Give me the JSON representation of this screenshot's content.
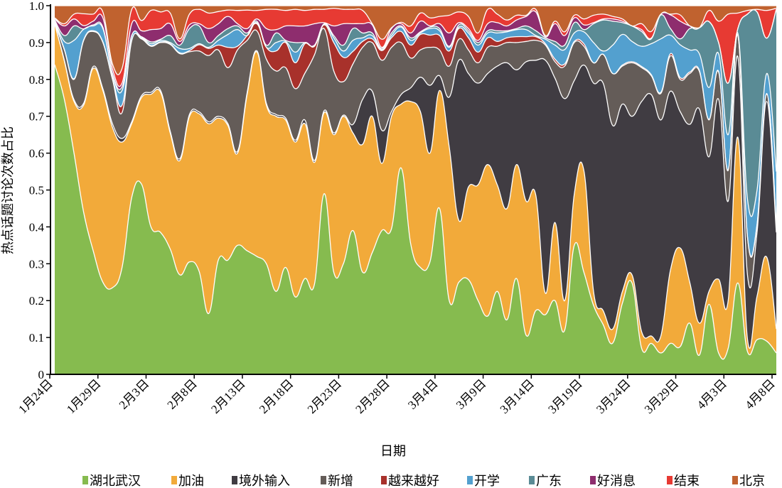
{
  "chart_data": {
    "type": "area",
    "stacked": true,
    "normalized": true,
    "title": "",
    "xlabel": "日期",
    "ylabel": "热点话题讨论次数占比",
    "ylim": [
      0,
      1.0
    ],
    "y_ticks": [
      "0",
      "0.1",
      "0.2",
      "0.3",
      "0.4",
      "0.5",
      "0.6",
      "0.7",
      "0.8",
      "0.9",
      "1.0"
    ],
    "x_ticks": [
      "1月24日",
      "1月29日",
      "2月3日",
      "2月8日",
      "2月13日",
      "2月18日",
      "2月23日",
      "2月28日",
      "3月4日",
      "3月9日",
      "3月14日",
      "3月19日",
      "3月24日",
      "3月29日",
      "4月3日",
      "4月8日"
    ],
    "x_range": [
      "1月24日",
      "4月8日"
    ],
    "grid": false,
    "legend_position": "bottom",
    "series": [
      {
        "name": "湖北武汉",
        "color": "#86bb4f",
        "values": [
          0.84,
          0.746,
          0.6,
          0.44,
          0.335,
          0.25,
          0.235,
          0.29,
          0.48,
          0.517,
          0.4,
          0.385,
          0.34,
          0.27,
          0.305,
          0.28,
          0.165,
          0.31,
          0.31,
          0.35,
          0.335,
          0.32,
          0.3,
          0.225,
          0.29,
          0.21,
          0.26,
          0.245,
          0.49,
          0.277,
          0.3,
          0.39,
          0.277,
          0.33,
          0.39,
          0.395,
          0.56,
          0.354,
          0.29,
          0.305,
          0.45,
          0.2,
          0.25,
          0.257,
          0.2,
          0.158,
          0.225,
          0.148,
          0.26,
          0.106,
          0.173,
          0.162,
          0.2,
          0.12,
          0.35,
          0.277,
          0.187,
          0.135,
          0.085,
          0.193,
          0.248,
          0.071,
          0.084,
          0.058,
          0.084,
          0.075,
          0.139,
          0.052,
          0.19,
          0.058,
          0.071,
          0.248,
          0.062,
          0.094,
          0.09,
          0.058
        ]
      },
      {
        "name": "加油",
        "color": "#f2aa3a",
        "values": [
          0.11,
          0.104,
          0.14,
          0.29,
          0.495,
          0.52,
          0.435,
          0.34,
          0.2,
          0.233,
          0.36,
          0.38,
          0.315,
          0.31,
          0.395,
          0.427,
          0.515,
          0.385,
          0.365,
          0.25,
          0.425,
          0.555,
          0.43,
          0.475,
          0.4,
          0.42,
          0.42,
          0.33,
          0.22,
          0.373,
          0.4,
          0.265,
          0.347,
          0.37,
          0.182,
          0.305,
          0.173,
          0.386,
          0.423,
          0.295,
          0.32,
          0.417,
          0.168,
          0.251,
          0.314,
          0.411,
          0.289,
          0.302,
          0.309,
          0.364,
          0.313,
          0.058,
          0.212,
          0.08,
          0.139,
          0.276,
          0.038,
          0.038,
          0.038,
          0.032,
          0.022,
          0.045,
          0.02,
          0.046,
          0.199,
          0.268,
          0.111,
          0.087,
          0.035,
          0.2,
          0.129,
          0.395,
          0.034,
          0.118,
          0.228,
          0.065
        ]
      },
      {
        "name": "境外输入",
        "color": "#403c42",
        "values": [
          0.001,
          0.002,
          0.005,
          0.005,
          0.005,
          0.005,
          0.01,
          0.01,
          0.005,
          0.005,
          0.005,
          0.005,
          0.005,
          0.005,
          0.005,
          0.005,
          0.005,
          0.005,
          0.005,
          0.005,
          0.005,
          0.003,
          0.005,
          0.005,
          0.005,
          0.005,
          0.01,
          0.005,
          0.005,
          0.005,
          0.003,
          0.023,
          0.122,
          0.068,
          0.09,
          0.013,
          0.026,
          0.037,
          0.093,
          0.184,
          0.04,
          0.135,
          0.434,
          0.308,
          0.276,
          0.247,
          0.322,
          0.395,
          0.257,
          0.378,
          0.366,
          0.632,
          0.391,
          0.548,
          0.308,
          0.286,
          0.565,
          0.617,
          0.552,
          0.508,
          0.43,
          0.624,
          0.655,
          0.586,
          0.485,
          0.37,
          0.428,
          0.581,
          0.365,
          0.488,
          0.27,
          0.218,
          0.174,
          0.173,
          0.422,
          0.262
        ]
      },
      {
        "name": "新增",
        "color": "#645c58",
        "values": [
          0.002,
          0.028,
          0.055,
          0.17,
          0.095,
          0.125,
          0.12,
          0.07,
          0.22,
          0.155,
          0.125,
          0.13,
          0.235,
          0.285,
          0.17,
          0.165,
          0.18,
          0.18,
          0.152,
          0.275,
          0.141,
          0.054,
          0.12,
          0.118,
          0.137,
          0.14,
          0.127,
          0.287,
          0.223,
          0.168,
          0.091,
          0.164,
          0.141,
          0.132,
          0.19,
          0.174,
          0.141,
          0.081,
          0.074,
          0.103,
          0.07,
          0.084,
          0.057,
          0.064,
          0.055,
          0.071,
          0.054,
          0.055,
          0.074,
          0.055,
          0.054,
          0.041,
          0.045,
          0.088,
          0.103,
          0.051,
          0.055,
          0.078,
          0.141,
          0.103,
          0.145,
          0.092,
          0.051,
          0.072,
          0.096,
          0.087,
          0.138,
          0.102,
          0.1,
          0.074,
          0.083,
          0.058,
          0.103,
          0.02,
          0.02,
          0.02
        ]
      },
      {
        "name": "越来越好",
        "color": "#a8312b",
        "values": [
          0.001,
          0.002,
          0.002,
          0.002,
          0.002,
          0.002,
          0.005,
          0.02,
          0.002,
          0.002,
          0.002,
          0.002,
          0.002,
          0.002,
          0.003,
          0.017,
          0.019,
          0.013,
          0.055,
          0.01,
          0.013,
          0.019,
          0.032,
          0.054,
          0.068,
          0.07,
          0.08,
          0.023,
          0.01,
          0.077,
          0.066,
          0.034,
          0.016,
          0.01,
          0.026,
          0.026,
          0.03,
          0.035,
          0.042,
          0.033,
          0.039,
          0.041,
          0.029,
          0.033,
          0.029,
          0.026,
          0.013,
          0.013,
          0.016,
          0.013,
          0.01,
          0.004,
          0.007,
          0.006,
          0.003,
          0.007,
          0,
          0,
          0,
          0.003,
          0.003,
          0.003,
          0.003,
          0.003,
          0.006,
          0.005,
          0.004,
          0.003,
          0.002,
          0.002,
          0.002,
          0.001,
          0.002,
          0.002,
          0.002,
          0.002
        ]
      },
      {
        "name": "开学",
        "color": "#53a0cf",
        "values": [
          0.004,
          0.021,
          0.104,
          0.029,
          0.013,
          0.036,
          0.01,
          0.04,
          0.012,
          0.003,
          0.005,
          0.004,
          0.003,
          0.012,
          0.006,
          0.003,
          0.003,
          0.013,
          0.035,
          0.045,
          0,
          0.003,
          0,
          0.023,
          0.003,
          0.029,
          0.003,
          0.001,
          0.002,
          0.013,
          0.017,
          0.03,
          0.01,
          0.009,
          0.003,
          0.006,
          0.012,
          0.013,
          0.004,
          0.018,
          0.013,
          0.01,
          0.004,
          0.013,
          0.019,
          0.013,
          0.023,
          0.016,
          0.019,
          0.019,
          0.003,
          0.012,
          0.038,
          0.039,
          0.023,
          0.032,
          0.055,
          0.009,
          0.077,
          0.083,
          0.055,
          0.055,
          0.084,
          0.145,
          0.05,
          0.089,
          0.06,
          0.045,
          0.086,
          0.048,
          0.095,
          0.005,
          0.101,
          0.093,
          0.054,
          0.143
        ]
      },
      {
        "name": "广东",
        "color": "#5a8b95",
        "values": [
          0.003,
          0.016,
          0.039,
          0.001,
          0.003,
          0.004,
          0.001,
          0.01,
          0,
          0.001,
          0.005,
          0.003,
          0.019,
          0.009,
          0.054,
          0.048,
          0.013,
          0.013,
          0.016,
          0.01,
          0.007,
          0.004,
          0.006,
          0.026,
          0.003,
          0.026,
          0,
          0.002,
          0.001,
          0.006,
          0.016,
          0.032,
          0.013,
          0.007,
          0.003,
          0.007,
          0.003,
          0.007,
          0.003,
          0.004,
          0.006,
          0.003,
          0.006,
          0.006,
          0.007,
          0.006,
          0.006,
          0.003,
          0.003,
          0.01,
          0.013,
          0.004,
          0.01,
          0.012,
          0.028,
          0.006,
          0.051,
          0.084,
          0.065,
          0.032,
          0.042,
          0.04,
          0.013,
          0.065,
          0.018,
          0.016,
          0.058,
          0.07,
          0.179,
          0.03,
          0.14,
          0.013,
          0.501,
          0.483,
          0.096,
          0.44
        ]
      },
      {
        "name": "好消息",
        "color": "#8e2d6e",
        "values": [
          0.003,
          0.026,
          0.019,
          0.009,
          0.01,
          0.025,
          0.013,
          0.01,
          0.032,
          0.016,
          0.033,
          0.029,
          0.032,
          0.01,
          0.01,
          0.006,
          0.038,
          0.032,
          0.033,
          0.006,
          0.012,
          0.006,
          0.045,
          0.009,
          0.039,
          0.045,
          0.045,
          0.058,
          0.003,
          0.026,
          0.058,
          0.013,
          0.025,
          0.022,
          0.003,
          0.012,
          0.006,
          0.013,
          0.029,
          0.003,
          0.013,
          0.036,
          0.006,
          0.006,
          0.006,
          0.019,
          0.022,
          0.013,
          0.023,
          0.026,
          0.051,
          0.003,
          0.048,
          0.026,
          0.013,
          0.013,
          0.003,
          0.003,
          0.006,
          0.004,
          0,
          0.005,
          0.002,
          0.002,
          0.037,
          0.048,
          0.007,
          0,
          0,
          0,
          0,
          0,
          0,
          0,
          0,
          0
        ]
      },
      {
        "name": "结束",
        "color": "#e73a33",
        "values": [
          0.003,
          0.006,
          0.013,
          0.032,
          0.019,
          0.016,
          0.013,
          0.04,
          0.039,
          0.028,
          0.052,
          0.045,
          0.029,
          0.007,
          0.029,
          0.039,
          0.042,
          0.033,
          0.017,
          0.036,
          0.05,
          0.023,
          0.052,
          0.055,
          0.042,
          0.045,
          0.042,
          0.039,
          0.036,
          0.048,
          0.039,
          0.039,
          0.036,
          0.003,
          0.022,
          0.002,
          0.004,
          0.019,
          0.022,
          0.022,
          0.02,
          0.048,
          0.029,
          0.033,
          0.02,
          0.039,
          0.023,
          0.016,
          0.013,
          0.003,
          0.007,
          0.003,
          0.007,
          0.01,
          0.007,
          0.016,
          0.02,
          0.013,
          0.007,
          0.006,
          0,
          0.016,
          0.018,
          0,
          0.002,
          0.017,
          0,
          0,
          0.03,
          0.058,
          0.187,
          0.042,
          0.01,
          0.007,
          0.075,
          0.003
        ]
      },
      {
        "name": "北京",
        "color": "#c0622f",
        "values": [
          0.033,
          0.049,
          0.023,
          0.023,
          0.023,
          0.017,
          0.158,
          0.17,
          0.01,
          0.04,
          0.013,
          0.017,
          0.02,
          0.09,
          0.023,
          0.01,
          0.02,
          0.016,
          0.012,
          0.013,
          0.012,
          0.013,
          0.01,
          0.01,
          0.013,
          0.01,
          0.013,
          0.01,
          0.01,
          0.007,
          0.01,
          0.01,
          0.013,
          0.049,
          0.091,
          0.06,
          0.045,
          0.055,
          0.02,
          0.033,
          0.029,
          0.026,
          0.017,
          0.029,
          0.074,
          0.01,
          0.023,
          0.039,
          0.026,
          0.026,
          0.01,
          0.081,
          0.042,
          0.071,
          0.026,
          0.036,
          0.026,
          0.023,
          0.029,
          0.036,
          0.055,
          0.049,
          0.07,
          0.023,
          0.023,
          0.025,
          0.055,
          0.06,
          0.013,
          0.042,
          0.023,
          0.02,
          0.013,
          0.01,
          0.013,
          0.007
        ]
      }
    ]
  }
}
